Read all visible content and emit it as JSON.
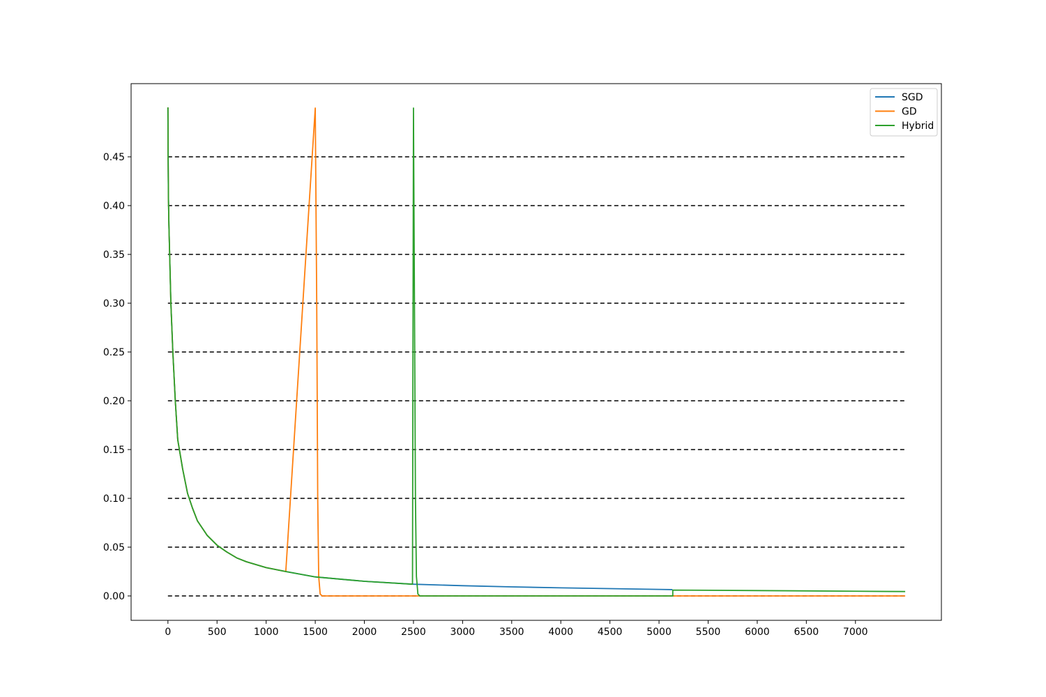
{
  "chart_data": {
    "type": "line",
    "title": "",
    "xlabel": "",
    "ylabel": "",
    "xlim": [
      -375,
      7875
    ],
    "ylim": [
      -0.025,
      0.525
    ],
    "x_ticks": [
      0,
      500,
      1000,
      1500,
      2000,
      2500,
      3000,
      3500,
      4000,
      4500,
      5000,
      5500,
      6000,
      6500,
      7000
    ],
    "x_tick_labels": [
      "0",
      "500",
      "1000",
      "1500",
      "2000",
      "2500",
      "3000",
      "3500",
      "4000",
      "4500",
      "5000",
      "5500",
      "6000",
      "6500",
      "7000"
    ],
    "y_ticks": [
      0.0,
      0.05,
      0.1,
      0.15,
      0.2,
      0.25,
      0.3,
      0.35,
      0.4,
      0.45
    ],
    "y_tick_labels": [
      "0.00",
      "0.05",
      "0.10",
      "0.15",
      "0.20",
      "0.25",
      "0.30",
      "0.35",
      "0.40",
      "0.45"
    ],
    "grid": false,
    "reference_lines": {
      "style": "dashed",
      "color": "#000000",
      "y_values": [
        0.0,
        0.05,
        0.1,
        0.15,
        0.2,
        0.25,
        0.3,
        0.35,
        0.4,
        0.45
      ],
      "x_range": [
        0,
        7500
      ]
    },
    "legend": {
      "position": "top-right"
    },
    "series": [
      {
        "name": "SGD",
        "color": "#1f77b4",
        "points": [
          [
            0,
            0.5
          ],
          [
            2,
            0.45
          ],
          [
            5,
            0.41
          ],
          [
            10,
            0.38
          ],
          [
            20,
            0.34
          ],
          [
            30,
            0.3
          ],
          [
            50,
            0.25
          ],
          [
            75,
            0.2
          ],
          [
            100,
            0.16
          ],
          [
            150,
            0.13
          ],
          [
            200,
            0.105
          ],
          [
            250,
            0.09
          ],
          [
            300,
            0.077
          ],
          [
            400,
            0.062
          ],
          [
            500,
            0.052
          ],
          [
            600,
            0.045
          ],
          [
            700,
            0.039
          ],
          [
            800,
            0.035
          ],
          [
            1000,
            0.029
          ],
          [
            1200,
            0.025
          ],
          [
            1500,
            0.0195
          ],
          [
            2000,
            0.015
          ],
          [
            2500,
            0.012
          ],
          [
            3000,
            0.0105
          ],
          [
            3500,
            0.0093
          ],
          [
            4000,
            0.0083
          ],
          [
            4500,
            0.0075
          ],
          [
            5000,
            0.0067
          ],
          [
            5130,
            0.0065
          ]
        ]
      },
      {
        "name": "GD",
        "color": "#ff7f0e",
        "points": [
          [
            0,
            0.5
          ],
          [
            2,
            0.45
          ],
          [
            5,
            0.41
          ],
          [
            10,
            0.38
          ],
          [
            20,
            0.34
          ],
          [
            30,
            0.3
          ],
          [
            50,
            0.25
          ],
          [
            75,
            0.2
          ],
          [
            100,
            0.16
          ],
          [
            150,
            0.13
          ],
          [
            200,
            0.105
          ],
          [
            250,
            0.09
          ],
          [
            300,
            0.077
          ],
          [
            400,
            0.062
          ],
          [
            500,
            0.052
          ],
          [
            600,
            0.045
          ],
          [
            700,
            0.039
          ],
          [
            800,
            0.035
          ],
          [
            1000,
            0.029
          ],
          [
            1200,
            0.025
          ],
          [
            1500,
            0.5
          ],
          [
            1515,
            0.3
          ],
          [
            1525,
            0.1
          ],
          [
            1535,
            0.02
          ],
          [
            1550,
            0.002
          ],
          [
            1570,
            0.0
          ],
          [
            2500,
            0.0
          ],
          [
            5000,
            0.0
          ],
          [
            7500,
            0.0
          ]
        ]
      },
      {
        "name": "Hybrid",
        "color": "#2ca02c",
        "points": [
          [
            0,
            0.5
          ],
          [
            2,
            0.45
          ],
          [
            5,
            0.41
          ],
          [
            10,
            0.38
          ],
          [
            20,
            0.34
          ],
          [
            30,
            0.3
          ],
          [
            50,
            0.25
          ],
          [
            75,
            0.2
          ],
          [
            100,
            0.16
          ],
          [
            150,
            0.13
          ],
          [
            200,
            0.105
          ],
          [
            250,
            0.09
          ],
          [
            300,
            0.077
          ],
          [
            400,
            0.062
          ],
          [
            500,
            0.052
          ],
          [
            600,
            0.045
          ],
          [
            700,
            0.039
          ],
          [
            800,
            0.035
          ],
          [
            1000,
            0.029
          ],
          [
            1200,
            0.025
          ],
          [
            1500,
            0.0195
          ],
          [
            2000,
            0.015
          ],
          [
            2490,
            0.012
          ],
          [
            2500,
            0.5
          ],
          [
            2510,
            0.3
          ],
          [
            2520,
            0.1
          ],
          [
            2530,
            0.02
          ],
          [
            2545,
            0.002
          ],
          [
            2565,
            0.0
          ],
          [
            3000,
            0.0
          ],
          [
            4000,
            0.0
          ],
          [
            5140,
            0.0
          ],
          [
            5140,
            0.006
          ],
          [
            6000,
            0.0055
          ],
          [
            7000,
            0.0048
          ],
          [
            7500,
            0.0045
          ]
        ]
      }
    ]
  }
}
